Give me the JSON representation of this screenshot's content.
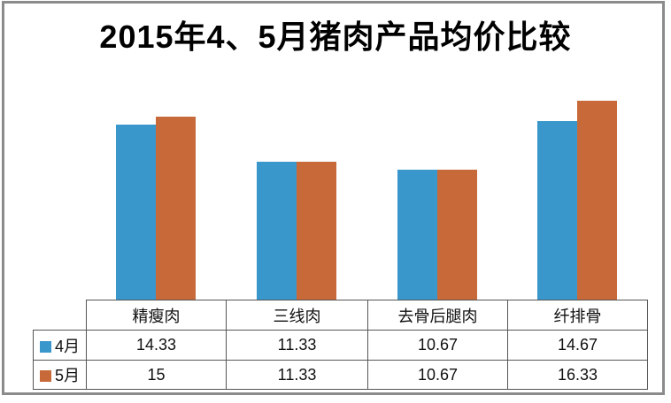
{
  "title": "2015年4、5月猪肉产品均价比较",
  "chart_data": {
    "type": "bar",
    "title": "2015年4、5月猪肉产品均价比较",
    "categories": [
      "精瘦肉",
      "三线肉",
      "去骨后腿肉",
      "纤排骨"
    ],
    "series": [
      {
        "name": "4月",
        "color": "#3A97CB",
        "values": [
          14.33,
          11.33,
          10.67,
          14.67
        ]
      },
      {
        "name": "5月",
        "color": "#C8693A",
        "values": [
          15,
          11.33,
          10.67,
          16.33
        ]
      }
    ],
    "xlabel": "",
    "ylabel": "",
    "ylim": [
      0,
      17
    ],
    "grid": false,
    "y_axis_shown": false,
    "legend_position": "data-table-left",
    "data_table": {
      "columns": [
        "精瘦肉",
        "三线肉",
        "去骨后腿肉",
        "纤排骨"
      ],
      "rows": [
        {
          "label": "4月",
          "values": [
            "14.33",
            "11.33",
            "10.67",
            "14.67"
          ]
        },
        {
          "label": "5月",
          "values": [
            "15",
            "11.33",
            "10.67",
            "16.33"
          ]
        }
      ]
    }
  },
  "colors": {
    "series_april": "#3A97CB",
    "series_may": "#C8693A",
    "frame_border": "#8B8B8B",
    "table_border": "#555555",
    "title_text": "#000000",
    "background": "#FFFFFF"
  }
}
